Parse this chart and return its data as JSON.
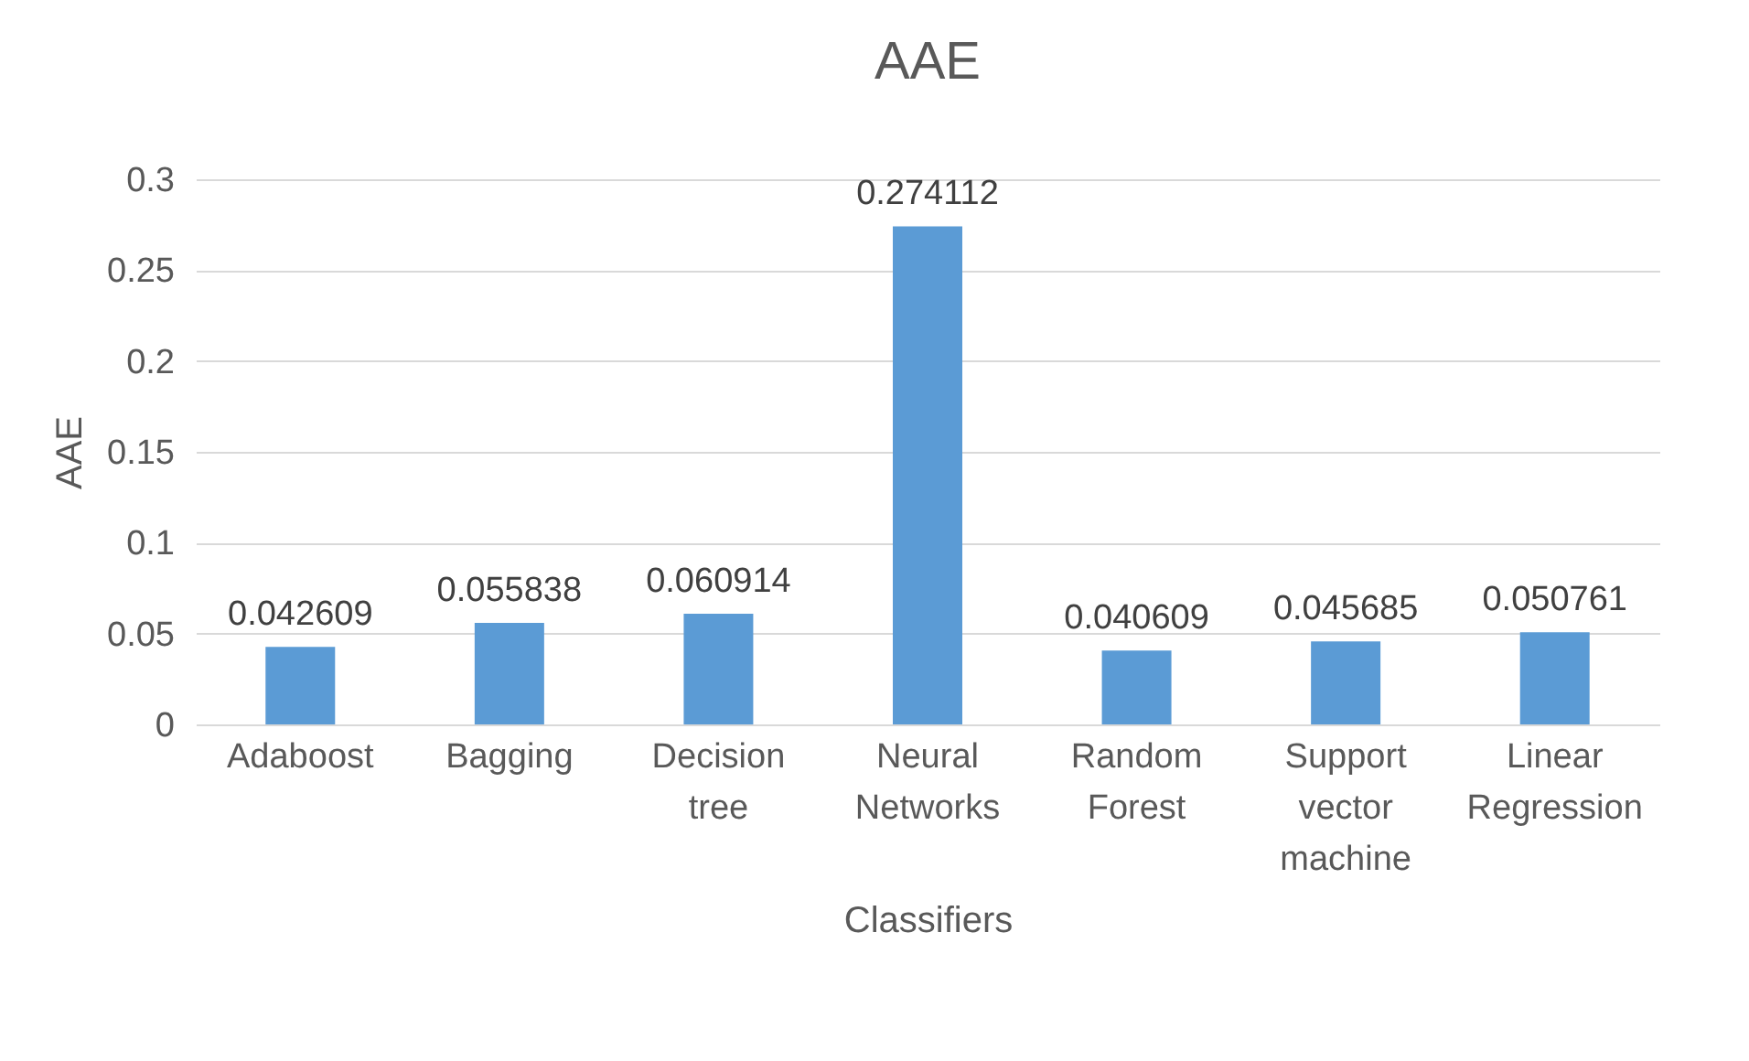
{
  "chart_data": {
    "type": "bar",
    "title": "AAE",
    "xlabel": "Classifiers",
    "ylabel": "AAE",
    "categories": [
      "Adaboost",
      "Bagging",
      "Decision tree",
      "Neural Networks",
      "Random Forest",
      "Support vector machine",
      "Linear Regression"
    ],
    "values": [
      0.042609,
      0.055838,
      0.060914,
      0.274112,
      0.040609,
      0.045685,
      0.050761
    ],
    "color": "#5b9bd5",
    "ylim": [
      0,
      0.3
    ],
    "yticks": [
      0,
      0.05,
      0.1,
      0.15,
      0.2,
      0.25,
      0.3
    ],
    "grid": "y",
    "data_labels": true
  }
}
